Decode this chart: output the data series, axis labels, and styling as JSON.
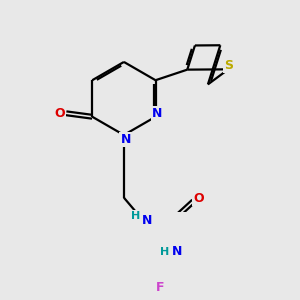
{
  "background_color": "#e8e8e8",
  "atom_colors": {
    "C": "#000000",
    "N": "#0000ee",
    "O": "#dd0000",
    "S": "#bbaa00",
    "F": "#cc44cc",
    "H": "#009999"
  },
  "figsize": [
    3.0,
    3.0
  ],
  "dpi": 100,
  "bond_lw": 1.6,
  "font_size": 9
}
